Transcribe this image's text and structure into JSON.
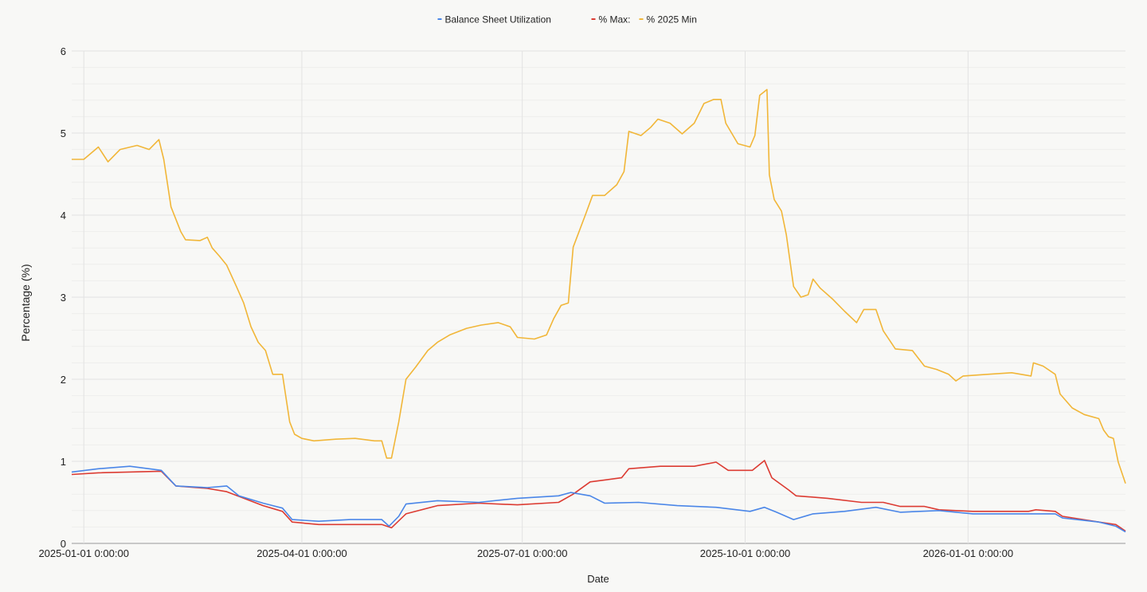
{
  "chart_data": {
    "type": "line",
    "title": "",
    "xlabel": "Date",
    "ylabel": "Percentage (%)",
    "ylim": [
      0,
      6
    ],
    "xlim": [
      "2024-12-27",
      "2026-03-07"
    ],
    "yticks": [
      "0",
      "1",
      "2",
      "3",
      "4",
      "5",
      "6"
    ],
    "xticks": [
      {
        "date": "2025-01-01",
        "label": "2025-01-01 0:00:00"
      },
      {
        "date": "2025-04-01",
        "label": "2025-04-01 0:00:00"
      },
      {
        "date": "2025-07-01",
        "label": "2025-07-01 0:00:00"
      },
      {
        "date": "2025-10-01",
        "label": "2025-10-01 0:00:00"
      },
      {
        "date": "2026-01-01",
        "label": "2026-01-01 0:00:00"
      }
    ],
    "grid": true,
    "minor_grid_step": 0.2,
    "legend_position": "top",
    "series": [
      {
        "name": "Balance Sheet Utilization",
        "color": "#4a86e8",
        "points": [
          [
            "2024-12-27",
            0.87
          ],
          [
            "2025-01-07",
            0.91
          ],
          [
            "2025-01-20",
            0.94
          ],
          [
            "2025-02-02",
            0.89
          ],
          [
            "2025-02-08",
            0.7
          ],
          [
            "2025-02-21",
            0.68
          ],
          [
            "2025-03-01",
            0.7
          ],
          [
            "2025-03-06",
            0.58
          ],
          [
            "2025-03-16",
            0.49
          ],
          [
            "2025-03-24",
            0.43
          ],
          [
            "2025-03-28",
            0.29
          ],
          [
            "2025-04-08",
            0.27
          ],
          [
            "2025-04-21",
            0.29
          ],
          [
            "2025-05-04",
            0.29
          ],
          [
            "2025-05-07",
            0.21
          ],
          [
            "2025-05-11",
            0.33
          ],
          [
            "2025-05-14",
            0.48
          ],
          [
            "2025-05-27",
            0.52
          ],
          [
            "2025-06-13",
            0.5
          ],
          [
            "2025-06-29",
            0.55
          ],
          [
            "2025-07-16",
            0.58
          ],
          [
            "2025-07-21",
            0.62
          ],
          [
            "2025-07-29",
            0.58
          ],
          [
            "2025-08-04",
            0.49
          ],
          [
            "2025-08-18",
            0.5
          ],
          [
            "2025-09-03",
            0.46
          ],
          [
            "2025-09-19",
            0.44
          ],
          [
            "2025-10-03",
            0.39
          ],
          [
            "2025-10-09",
            0.44
          ],
          [
            "2025-10-14",
            0.38
          ],
          [
            "2025-10-21",
            0.29
          ],
          [
            "2025-10-29",
            0.36
          ],
          [
            "2025-11-11",
            0.39
          ],
          [
            "2025-11-24",
            0.44
          ],
          [
            "2025-12-04",
            0.38
          ],
          [
            "2025-12-20",
            0.4
          ],
          [
            "2026-01-03",
            0.36
          ],
          [
            "2026-01-26",
            0.36
          ],
          [
            "2026-02-06",
            0.36
          ],
          [
            "2026-02-09",
            0.31
          ],
          [
            "2026-02-24",
            0.26
          ],
          [
            "2026-03-03",
            0.21
          ],
          [
            "2026-03-07",
            0.14
          ]
        ]
      },
      {
        "name": "% Max:",
        "color": "#dc3b32",
        "points": [
          [
            "2024-12-27",
            0.84
          ],
          [
            "2025-01-07",
            0.86
          ],
          [
            "2025-02-02",
            0.88
          ],
          [
            "2025-02-08",
            0.7
          ],
          [
            "2025-02-21",
            0.67
          ],
          [
            "2025-03-01",
            0.63
          ],
          [
            "2025-03-16",
            0.46
          ],
          [
            "2025-03-24",
            0.39
          ],
          [
            "2025-03-28",
            0.26
          ],
          [
            "2025-04-08",
            0.23
          ],
          [
            "2025-05-04",
            0.23
          ],
          [
            "2025-05-08",
            0.19
          ],
          [
            "2025-05-14",
            0.36
          ],
          [
            "2025-05-27",
            0.46
          ],
          [
            "2025-06-13",
            0.49
          ],
          [
            "2025-06-29",
            0.47
          ],
          [
            "2025-07-16",
            0.5
          ],
          [
            "2025-07-22",
            0.6
          ],
          [
            "2025-07-29",
            0.75
          ],
          [
            "2025-08-11",
            0.8
          ],
          [
            "2025-08-14",
            0.91
          ],
          [
            "2025-08-27",
            0.94
          ],
          [
            "2025-09-10",
            0.94
          ],
          [
            "2025-09-19",
            0.99
          ],
          [
            "2025-09-24",
            0.89
          ],
          [
            "2025-10-04",
            0.89
          ],
          [
            "2025-10-09",
            1.01
          ],
          [
            "2025-10-12",
            0.8
          ],
          [
            "2025-10-19",
            0.65
          ],
          [
            "2025-10-22",
            0.58
          ],
          [
            "2025-11-04",
            0.55
          ],
          [
            "2025-11-18",
            0.5
          ],
          [
            "2025-11-27",
            0.5
          ],
          [
            "2025-12-04",
            0.45
          ],
          [
            "2025-12-14",
            0.45
          ],
          [
            "2025-12-20",
            0.41
          ],
          [
            "2026-01-03",
            0.39
          ],
          [
            "2026-01-26",
            0.39
          ],
          [
            "2026-01-29",
            0.41
          ],
          [
            "2026-02-06",
            0.39
          ],
          [
            "2026-02-09",
            0.33
          ],
          [
            "2026-02-24",
            0.26
          ],
          [
            "2026-03-03",
            0.23
          ],
          [
            "2026-03-07",
            0.15
          ]
        ]
      },
      {
        "name": "% 2025 Min",
        "color": "#f1b638",
        "points": [
          [
            "2024-12-27",
            4.68
          ],
          [
            "2025-01-01",
            4.68
          ],
          [
            "2025-01-07",
            4.83
          ],
          [
            "2025-01-11",
            4.65
          ],
          [
            "2025-01-16",
            4.8
          ],
          [
            "2025-01-23",
            4.85
          ],
          [
            "2025-01-28",
            4.8
          ],
          [
            "2025-02-01",
            4.92
          ],
          [
            "2025-02-03",
            4.68
          ],
          [
            "2025-02-06",
            4.1
          ],
          [
            "2025-02-10",
            3.8
          ],
          [
            "2025-02-12",
            3.7
          ],
          [
            "2025-02-18",
            3.69
          ],
          [
            "2025-02-21",
            3.73
          ],
          [
            "2025-02-23",
            3.6
          ],
          [
            "2025-02-26",
            3.5
          ],
          [
            "2025-03-01",
            3.39
          ],
          [
            "2025-03-05",
            3.13
          ],
          [
            "2025-03-08",
            2.93
          ],
          [
            "2025-03-11",
            2.64
          ],
          [
            "2025-03-14",
            2.45
          ],
          [
            "2025-03-17",
            2.35
          ],
          [
            "2025-03-20",
            2.06
          ],
          [
            "2025-03-24",
            2.06
          ],
          [
            "2025-03-27",
            1.48
          ],
          [
            "2025-03-29",
            1.33
          ],
          [
            "2025-04-01",
            1.28
          ],
          [
            "2025-04-06",
            1.25
          ],
          [
            "2025-04-15",
            1.27
          ],
          [
            "2025-04-23",
            1.28
          ],
          [
            "2025-05-01",
            1.25
          ],
          [
            "2025-05-04",
            1.25
          ],
          [
            "2025-05-06",
            1.04
          ],
          [
            "2025-05-08",
            1.04
          ],
          [
            "2025-05-11",
            1.48
          ],
          [
            "2025-05-14",
            2.0
          ],
          [
            "2025-05-18",
            2.15
          ],
          [
            "2025-05-23",
            2.35
          ],
          [
            "2025-05-27",
            2.45
          ],
          [
            "2025-06-01",
            2.54
          ],
          [
            "2025-06-08",
            2.62
          ],
          [
            "2025-06-14",
            2.66
          ],
          [
            "2025-06-21",
            2.69
          ],
          [
            "2025-06-26",
            2.64
          ],
          [
            "2025-06-29",
            2.51
          ],
          [
            "2025-07-06",
            2.49
          ],
          [
            "2025-07-11",
            2.54
          ],
          [
            "2025-07-14",
            2.74
          ],
          [
            "2025-07-17",
            2.9
          ],
          [
            "2025-07-20",
            2.93
          ],
          [
            "2025-07-22",
            3.61
          ],
          [
            "2025-07-27",
            4.0
          ],
          [
            "2025-07-30",
            4.24
          ],
          [
            "2025-08-04",
            4.24
          ],
          [
            "2025-08-09",
            4.37
          ],
          [
            "2025-08-12",
            4.53
          ],
          [
            "2025-08-14",
            5.02
          ],
          [
            "2025-08-19",
            4.97
          ],
          [
            "2025-08-23",
            5.07
          ],
          [
            "2025-08-26",
            5.17
          ],
          [
            "2025-08-31",
            5.12
          ],
          [
            "2025-09-05",
            4.99
          ],
          [
            "2025-09-10",
            5.12
          ],
          [
            "2025-09-14",
            5.36
          ],
          [
            "2025-09-18",
            5.41
          ],
          [
            "2025-09-21",
            5.41
          ],
          [
            "2025-09-23",
            5.12
          ],
          [
            "2025-09-28",
            4.87
          ],
          [
            "2025-10-03",
            4.83
          ],
          [
            "2025-10-05",
            4.97
          ],
          [
            "2025-10-07",
            5.46
          ],
          [
            "2025-10-10",
            5.53
          ],
          [
            "2025-10-11",
            4.49
          ],
          [
            "2025-10-13",
            4.19
          ],
          [
            "2025-10-16",
            4.05
          ],
          [
            "2025-10-18",
            3.76
          ],
          [
            "2025-10-21",
            3.13
          ],
          [
            "2025-10-24",
            3.0
          ],
          [
            "2025-10-27",
            3.03
          ],
          [
            "2025-10-29",
            3.22
          ],
          [
            "2025-11-01",
            3.11
          ],
          [
            "2025-11-06",
            2.98
          ],
          [
            "2025-11-11",
            2.83
          ],
          [
            "2025-11-16",
            2.69
          ],
          [
            "2025-11-19",
            2.85
          ],
          [
            "2025-11-24",
            2.85
          ],
          [
            "2025-11-27",
            2.59
          ],
          [
            "2025-12-02",
            2.37
          ],
          [
            "2025-12-09",
            2.35
          ],
          [
            "2025-12-14",
            2.16
          ],
          [
            "2025-12-19",
            2.12
          ],
          [
            "2025-12-24",
            2.06
          ],
          [
            "2025-12-27",
            1.98
          ],
          [
            "2025-12-30",
            2.04
          ],
          [
            "2026-01-09",
            2.06
          ],
          [
            "2026-01-19",
            2.08
          ],
          [
            "2026-01-27",
            2.04
          ],
          [
            "2026-01-28",
            2.2
          ],
          [
            "2026-02-01",
            2.16
          ],
          [
            "2026-02-06",
            2.06
          ],
          [
            "2026-02-08",
            1.82
          ],
          [
            "2026-02-13",
            1.65
          ],
          [
            "2026-02-18",
            1.57
          ],
          [
            "2026-02-24",
            1.52
          ],
          [
            "2026-02-26",
            1.38
          ],
          [
            "2026-02-28",
            1.3
          ],
          [
            "2026-03-02",
            1.28
          ],
          [
            "2026-03-04",
            0.99
          ],
          [
            "2026-03-07",
            0.73
          ]
        ]
      }
    ]
  }
}
